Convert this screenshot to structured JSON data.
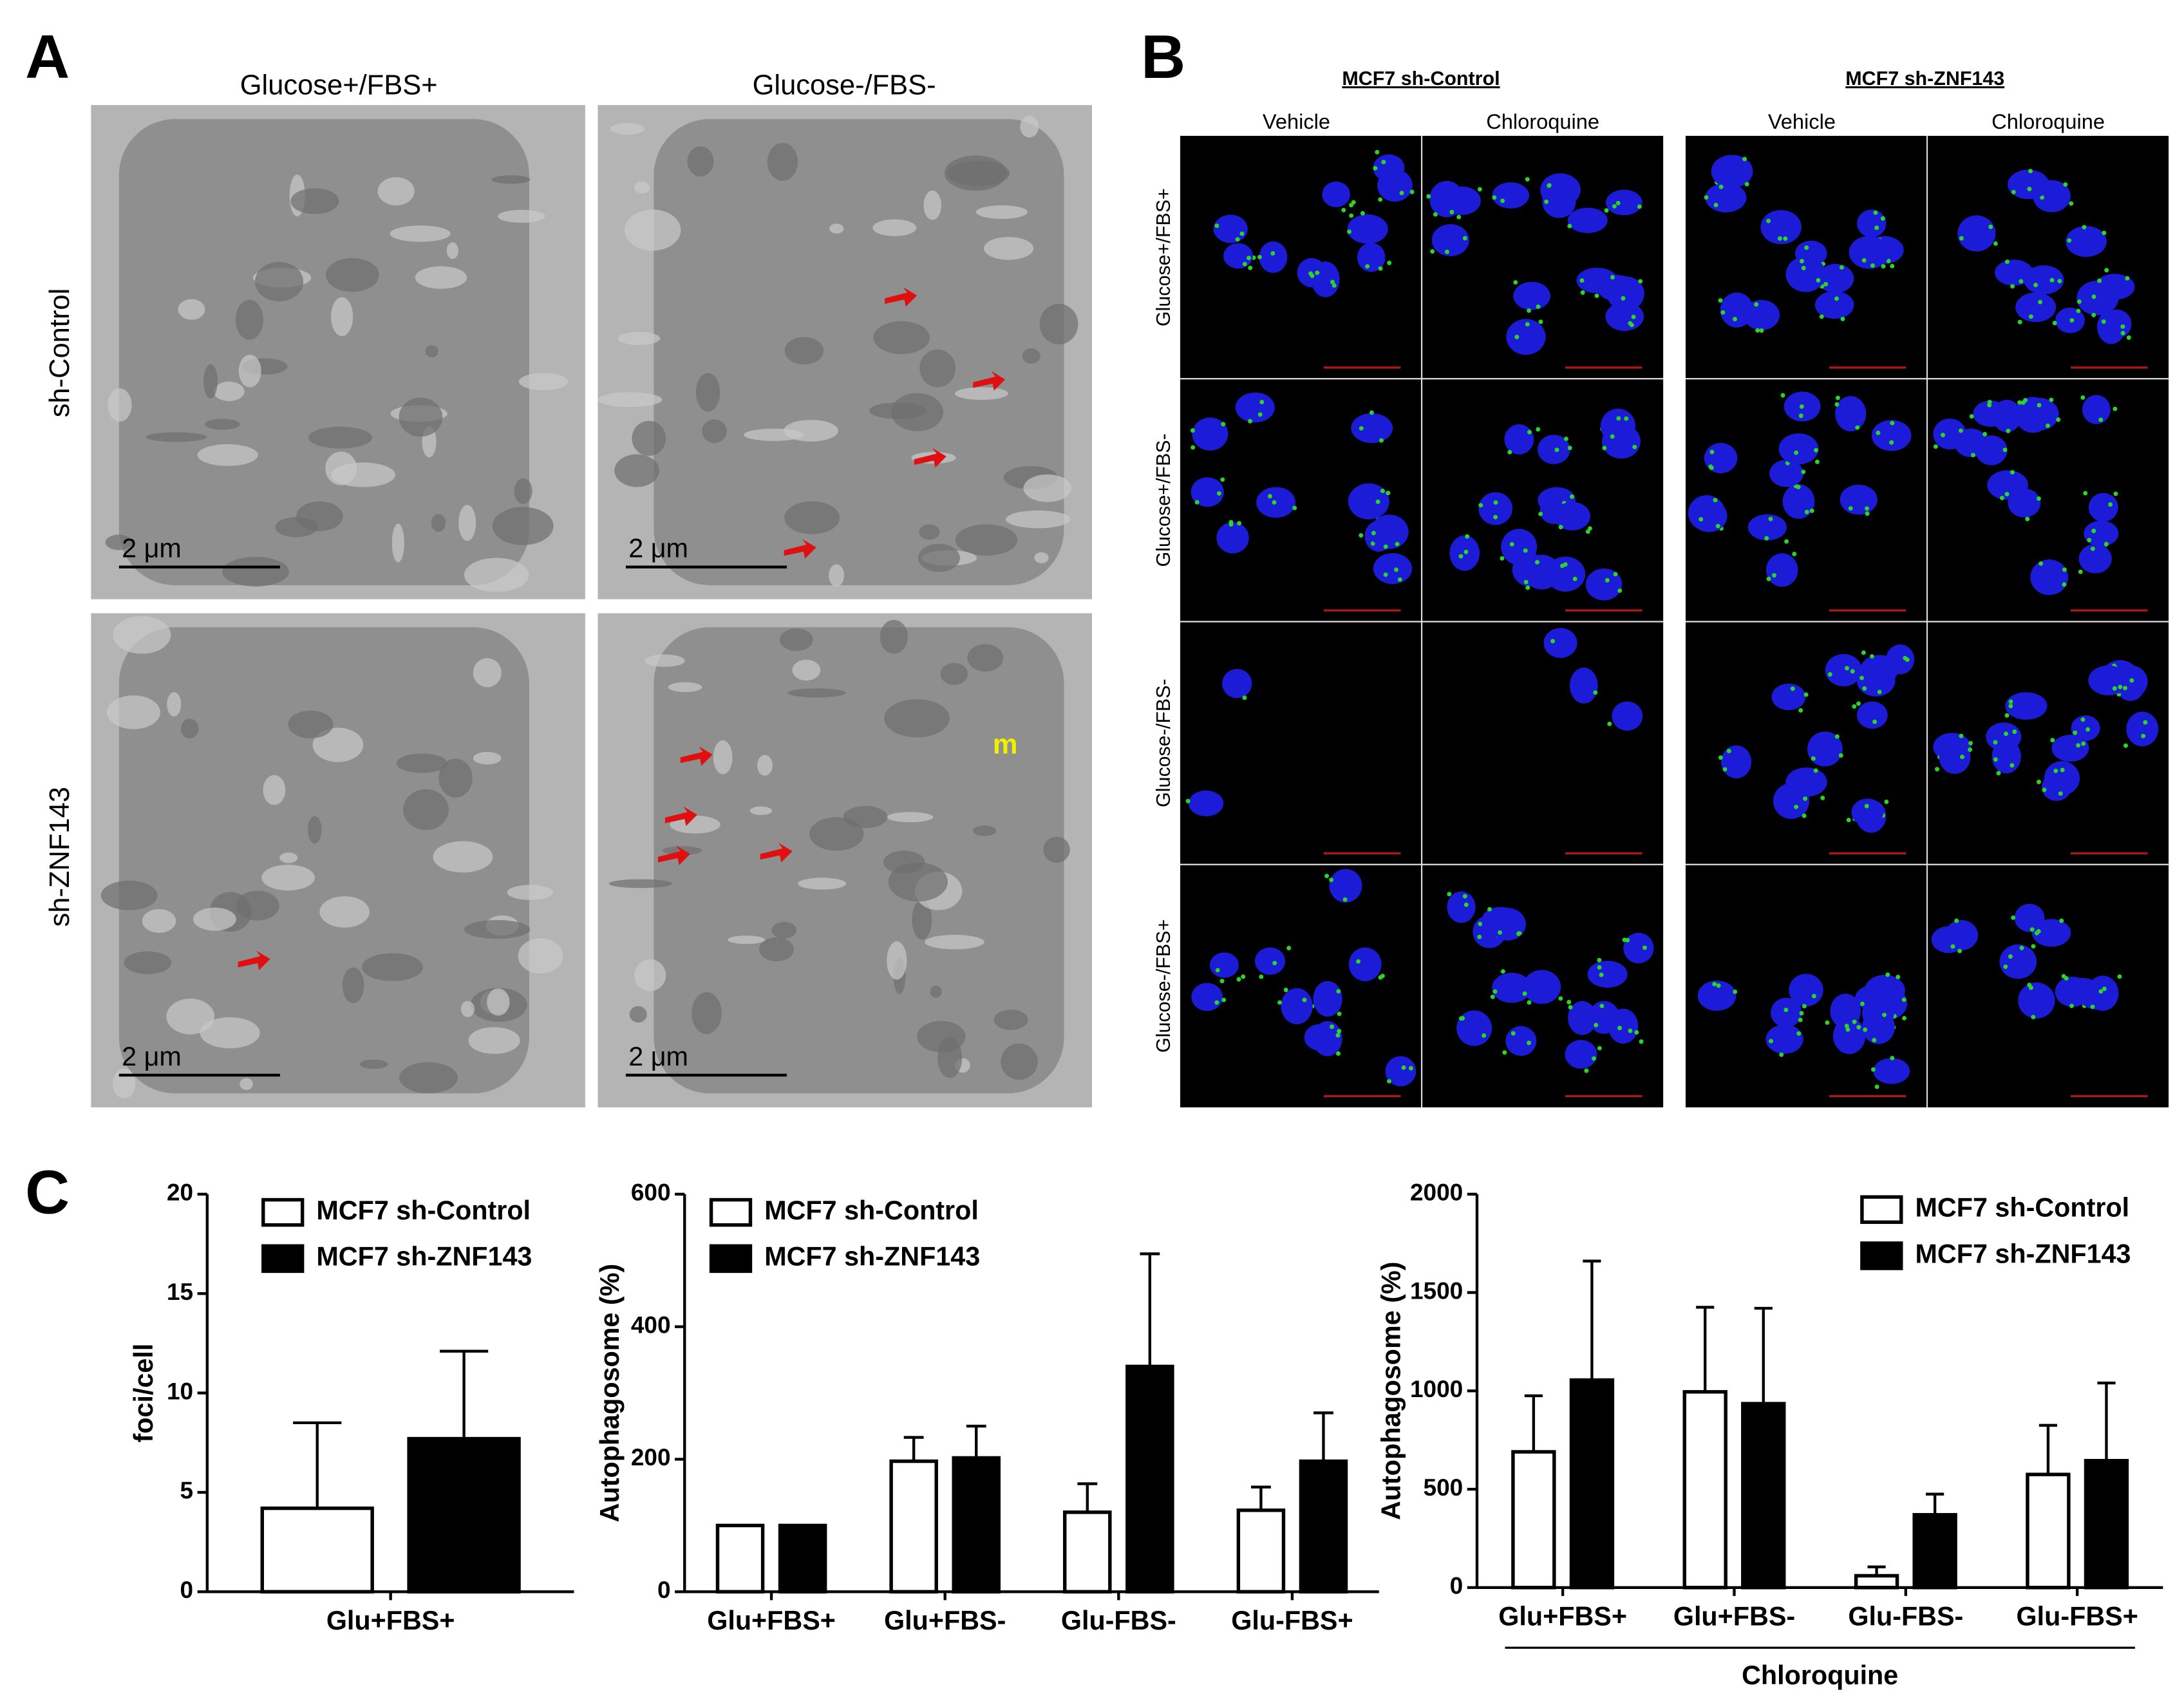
{
  "panel_labels": [
    "A",
    "B",
    "C"
  ],
  "panel_a": {
    "columns": [
      "Glucose+/FBS+",
      "Glucose-/FBS-"
    ],
    "rows": [
      "sh-Control",
      "sh-ZNF143"
    ],
    "scale_bar": "2  μm",
    "marker": "m"
  },
  "panel_b": {
    "groups": [
      "MCF7 sh-Control",
      "MCF7 sh-ZNF143"
    ],
    "conditions": [
      "Vehicle",
      "Chloroquine"
    ],
    "rows": [
      "Glucose+/FBS+",
      "Glucose+/FBS-",
      "Glucose-/FBS-",
      "Glucose-/FBS+"
    ]
  },
  "chart_data": [
    {
      "type": "bar",
      "ylabel": "foci/cell",
      "categories": [
        "Glu+FBS+"
      ],
      "series": [
        {
          "name": "MCF7 sh-Control",
          "color": "#ffffff",
          "values": [
            4.2
          ],
          "errors": [
            4.3
          ]
        },
        {
          "name": "MCF7 sh-ZNF143",
          "color": "#000000",
          "values": [
            7.7
          ],
          "errors": [
            4.4
          ]
        }
      ],
      "ylim": [
        0,
        20
      ],
      "yticks": [
        0,
        5,
        10,
        15,
        20
      ],
      "legend": "upper left"
    },
    {
      "type": "bar",
      "ylabel": "Autophagosome (%)",
      "categories": [
        "Glu+FBS+",
        "Glu+FBS-",
        "Glu-FBS-",
        "Glu-FBS+"
      ],
      "series": [
        {
          "name": "MCF7 sh-Control",
          "color": "#ffffff",
          "values": [
            100,
            197,
            120,
            123
          ],
          "errors": [
            null,
            36,
            43,
            35
          ]
        },
        {
          "name": "MCF7 sh-ZNF143",
          "color": "#000000",
          "values": [
            100,
            202,
            340,
            197
          ],
          "errors": [
            null,
            48,
            170,
            73
          ]
        }
      ],
      "ylim": [
        0,
        600
      ],
      "yticks": [
        0,
        200,
        400,
        600
      ],
      "legend": "upper left"
    },
    {
      "type": "bar",
      "ylabel": "Autophagosome (%)",
      "xlabel": "Chloroquine",
      "categories": [
        "Glu+FBS+",
        "Glu+FBS-",
        "Glu-FBS-",
        "Glu-FBS+"
      ],
      "series": [
        {
          "name": "MCF7 sh-Control",
          "color": "#ffffff",
          "values": [
            690,
            995,
            60,
            575
          ],
          "errors": [
            285,
            430,
            45,
            250
          ]
        },
        {
          "name": "MCF7 sh-ZNF143",
          "color": "#000000",
          "values": [
            1055,
            935,
            370,
            645
          ],
          "errors": [
            605,
            485,
            105,
            395
          ]
        }
      ],
      "ylim": [
        0,
        2000
      ],
      "yticks": [
        0,
        500,
        1000,
        1500,
        2000
      ],
      "legend": "upper right"
    }
  ]
}
